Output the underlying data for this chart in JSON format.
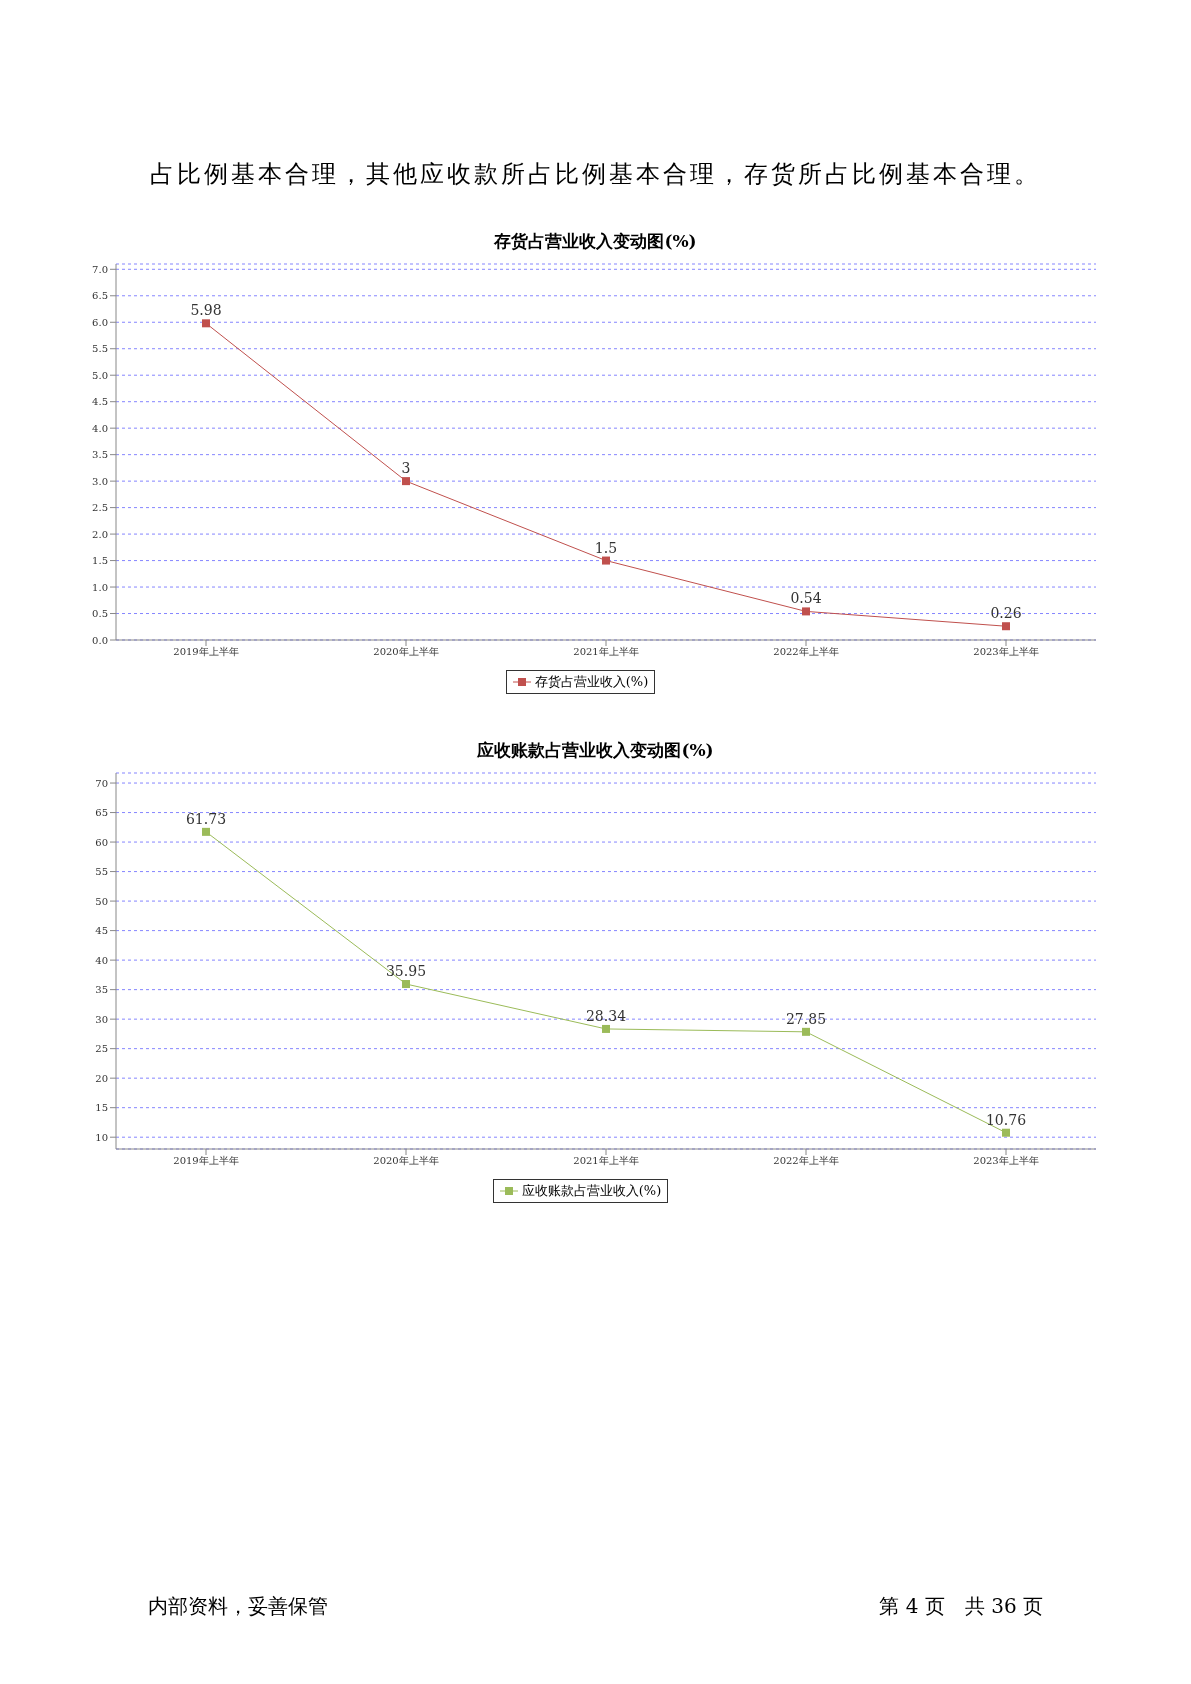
{
  "chart_data": [
    {
      "type": "line",
      "title": "存货占营业收入变动图(%)",
      "annotations": [
        "占比例基本合理，其他应收款所占比例基本合理，存货所占比例基本合理。"
      ],
      "categories": [
        "2019年上半年",
        "2020年上半年",
        "2021年上半年",
        "2022年上半年",
        "2023年上半年"
      ],
      "series": [
        {
          "name": "存货占营业收入(%)",
          "color": "#c0504d",
          "values": [
            5.98,
            3,
            1.5,
            0.54,
            0.26
          ]
        }
      ],
      "ylim": [
        0,
        7.1
      ],
      "yticks": [
        {
          "value": 0,
          "label": "0.0"
        },
        {
          "value": 0.5,
          "label": "0.5"
        },
        {
          "value": 1,
          "label": "1.0"
        },
        {
          "value": 1.5,
          "label": "1.5"
        },
        {
          "value": 2,
          "label": "2.0"
        },
        {
          "value": 2.5,
          "label": "2.5"
        },
        {
          "value": 3,
          "label": "3.0"
        },
        {
          "value": 3.5,
          "label": "3.5"
        },
        {
          "value": 4,
          "label": "4.0"
        },
        {
          "value": 4.5,
          "label": "4.5"
        },
        {
          "value": 5,
          "label": "5.0"
        },
        {
          "value": 5.5,
          "label": "5.5"
        },
        {
          "value": 6,
          "label": "6.0"
        },
        {
          "value": 6.5,
          "label": "6.5"
        },
        {
          "value": 7,
          "label": "7.0"
        }
      ],
      "grid": "y",
      "legend": "bottom",
      "marker": "square",
      "line_style": "solid",
      "data_labels": true
    },
    {
      "type": "line",
      "title": "应收账款占营业收入变动图(%)",
      "annotations": [
        "内部资料，妥善保管",
        "第 4 页　共 36 页"
      ],
      "categories": [
        "2019年上半年",
        "2020年上半年",
        "2021年上半年",
        "2022年上半年",
        "2023年上半年"
      ],
      "series": [
        {
          "name": "应收账款占营业收入(%)",
          "color": "#9bbb59",
          "values": [
            61.73,
            35.95,
            28.34,
            27.85,
            10.76
          ]
        }
      ],
      "ylim": [
        8,
        71.7
      ],
      "yticks": [
        10,
        15,
        20,
        25,
        30,
        35,
        40,
        45,
        50,
        55,
        60,
        65,
        70
      ],
      "grid": "y",
      "legend": "bottom",
      "marker": "square",
      "line_style": "solid",
      "data_labels": true
    }
  ]
}
